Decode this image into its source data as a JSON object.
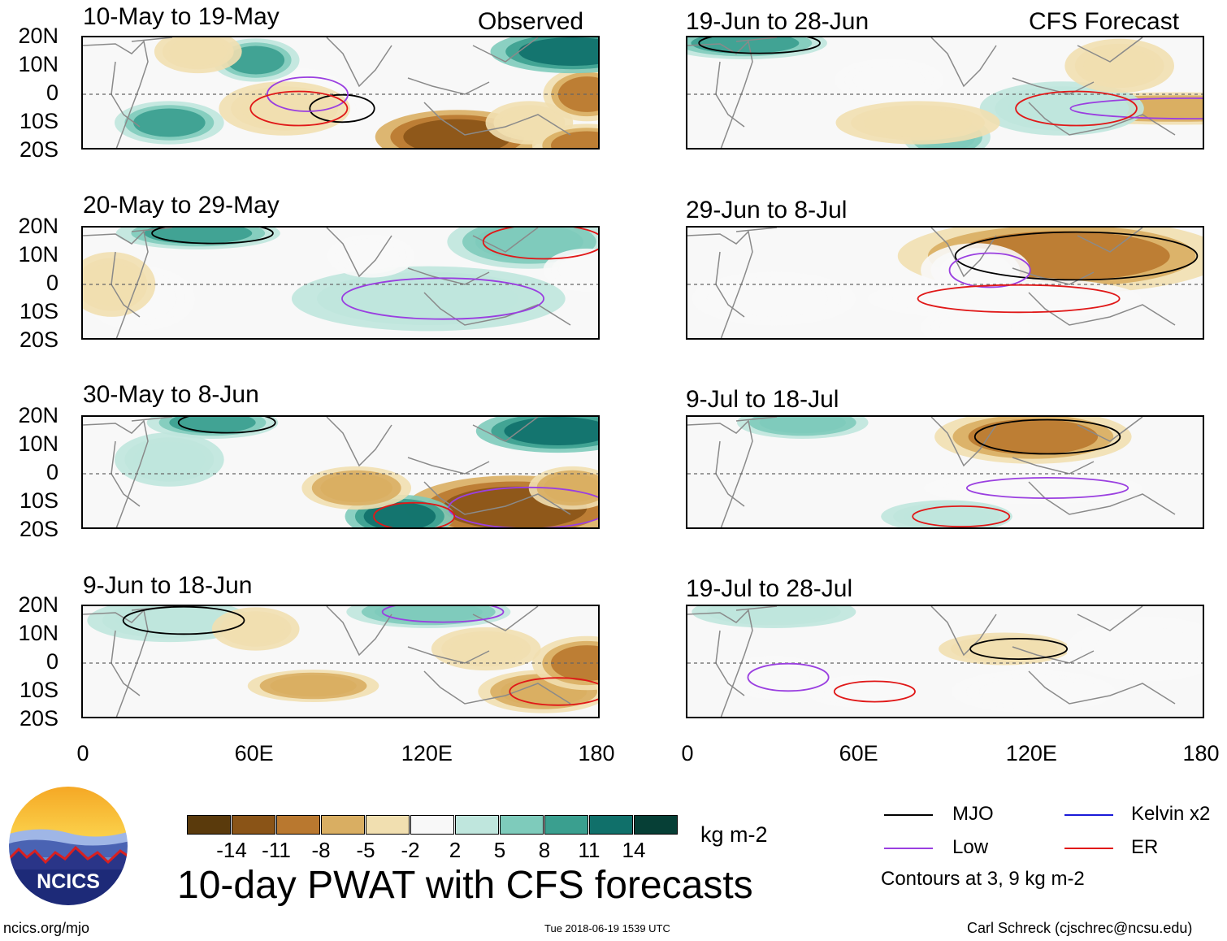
{
  "panels": [
    {
      "title": "10-May to 19-May",
      "tag": "Observed"
    },
    {
      "title": "20-May to 29-May",
      "tag": ""
    },
    {
      "title": "30-May to 8-Jun",
      "tag": ""
    },
    {
      "title": "9-Jun to 18-Jun",
      "tag": ""
    },
    {
      "title": "19-Jun to 28-Jun",
      "tag": "CFS Forecast"
    },
    {
      "title": "29-Jun to 8-Jul",
      "tag": ""
    },
    {
      "title": "9-Jul to 18-Jul",
      "tag": ""
    },
    {
      "title": "19-Jul to 28-Jul",
      "tag": ""
    }
  ],
  "chart_data": {
    "type": "heatmap",
    "title": "10-day PWAT with CFS forecasts",
    "units": "kg m-2",
    "x_ticks": [
      "0",
      "60E",
      "120E",
      "180"
    ],
    "y_ticks": [
      "20N",
      "10N",
      "0",
      "10S",
      "20S"
    ],
    "xlim": [
      0,
      180
    ],
    "ylim": [
      -20,
      20
    ],
    "colorbar_levels": [
      -14,
      -11,
      -8,
      -5,
      -2,
      2,
      5,
      8,
      11,
      14
    ],
    "colorbar_labels": [
      "-14",
      "-11",
      "-8",
      "-5",
      "-2",
      "2",
      "5",
      "8",
      "11",
      "14"
    ],
    "colorbar_colors": [
      "#5a3a0c",
      "#8a5417",
      "#b9782f",
      "#d9ae62",
      "#f1dfb0",
      "#f8f8f8",
      "#bfe6dd",
      "#7ecbbb",
      "#3a9f8f",
      "#10706a",
      "#063f36"
    ],
    "contours_note": "Contours at 3, 9 kg m-2",
    "legend": [
      {
        "name": "MJO",
        "color": "#000000"
      },
      {
        "name": "Kelvin x2",
        "color": "#1a1ad8"
      },
      {
        "name": "Low",
        "color": "#9a3fe0"
      },
      {
        "name": "ER",
        "color": "#e01818"
      }
    ],
    "blobs": [
      [
        [
          85,
          -5,
          8,
          4,
          2
        ],
        [
          73,
          0,
          10,
          5,
          -2
        ],
        [
          70,
          -5,
          12,
          5,
          -5
        ],
        [
          30,
          -10,
          10,
          4,
          11
        ],
        [
          60,
          12,
          8,
          4,
          11
        ],
        [
          130,
          -15,
          15,
          5,
          -14
        ],
        [
          155,
          -10,
          8,
          4,
          -5
        ],
        [
          175,
          0,
          8,
          5,
          -11
        ],
        [
          170,
          15,
          15,
          4,
          14
        ],
        [
          175,
          -18,
          10,
          4,
          -11
        ],
        [
          40,
          15,
          8,
          4,
          -5
        ]
      ],
      [
        [
          40,
          18,
          15,
          3,
          11
        ],
        [
          120,
          -5,
          25,
          6,
          5
        ],
        [
          155,
          15,
          15,
          5,
          8
        ],
        [
          20,
          -5,
          10,
          6,
          -2
        ],
        [
          100,
          10,
          8,
          4,
          -2
        ],
        [
          10,
          0,
          8,
          6,
          -5
        ],
        [
          175,
          5,
          8,
          4,
          -2
        ]
      ],
      [
        [
          45,
          18,
          12,
          3,
          11
        ],
        [
          150,
          -12,
          20,
          6,
          -14
        ],
        [
          110,
          -15,
          10,
          4,
          14
        ],
        [
          95,
          -5,
          10,
          4,
          -8
        ],
        [
          165,
          15,
          15,
          4,
          14
        ],
        [
          30,
          5,
          10,
          5,
          5
        ],
        [
          170,
          -5,
          8,
          4,
          -8
        ]
      ],
      [
        [
          30,
          15,
          15,
          4,
          5
        ],
        [
          120,
          18,
          15,
          3,
          8
        ],
        [
          160,
          -10,
          12,
          4,
          -8
        ],
        [
          80,
          -8,
          12,
          3,
          -8
        ],
        [
          175,
          0,
          10,
          5,
          -11
        ],
        [
          60,
          12,
          8,
          4,
          -5
        ],
        [
          140,
          5,
          10,
          4,
          -5
        ]
      ],
      [
        [
          20,
          18,
          15,
          3,
          11
        ],
        [
          170,
          -5,
          30,
          3,
          -8
        ],
        [
          130,
          -5,
          15,
          5,
          5
        ],
        [
          90,
          -15,
          8,
          4,
          8
        ],
        [
          70,
          5,
          10,
          4,
          2
        ],
        [
          150,
          10,
          10,
          5,
          -5
        ],
        [
          80,
          -10,
          15,
          4,
          -5
        ]
      ],
      [
        [
          130,
          10,
          30,
          7,
          -11
        ],
        [
          100,
          5,
          10,
          5,
          -2
        ],
        [
          110,
          -5,
          25,
          4,
          2
        ],
        [
          100,
          -15,
          10,
          4,
          2
        ],
        [
          30,
          -5,
          15,
          5,
          2
        ]
      ],
      [
        [
          120,
          13,
          18,
          5,
          -11
        ],
        [
          120,
          -5,
          20,
          3,
          2
        ],
        [
          90,
          -15,
          12,
          3,
          5
        ],
        [
          40,
          18,
          12,
          3,
          8
        ]
      ],
      [
        [
          110,
          5,
          12,
          3,
          -5
        ],
        [
          30,
          -5,
          10,
          4,
          2
        ],
        [
          60,
          -10,
          10,
          3,
          -2
        ],
        [
          160,
          5,
          15,
          6,
          2
        ],
        [
          120,
          -10,
          15,
          4,
          -2
        ],
        [
          30,
          18,
          15,
          3,
          5
        ]
      ]
    ]
  },
  "colorbar": {
    "units": "kg m-2"
  },
  "footer": {
    "left": "ncics.org/mjo",
    "center": "Tue 2018-06-19 1539 UTC",
    "right": "Carl Schreck (cjschrec@ncsu.edu)",
    "logo_text": "NCICS"
  }
}
